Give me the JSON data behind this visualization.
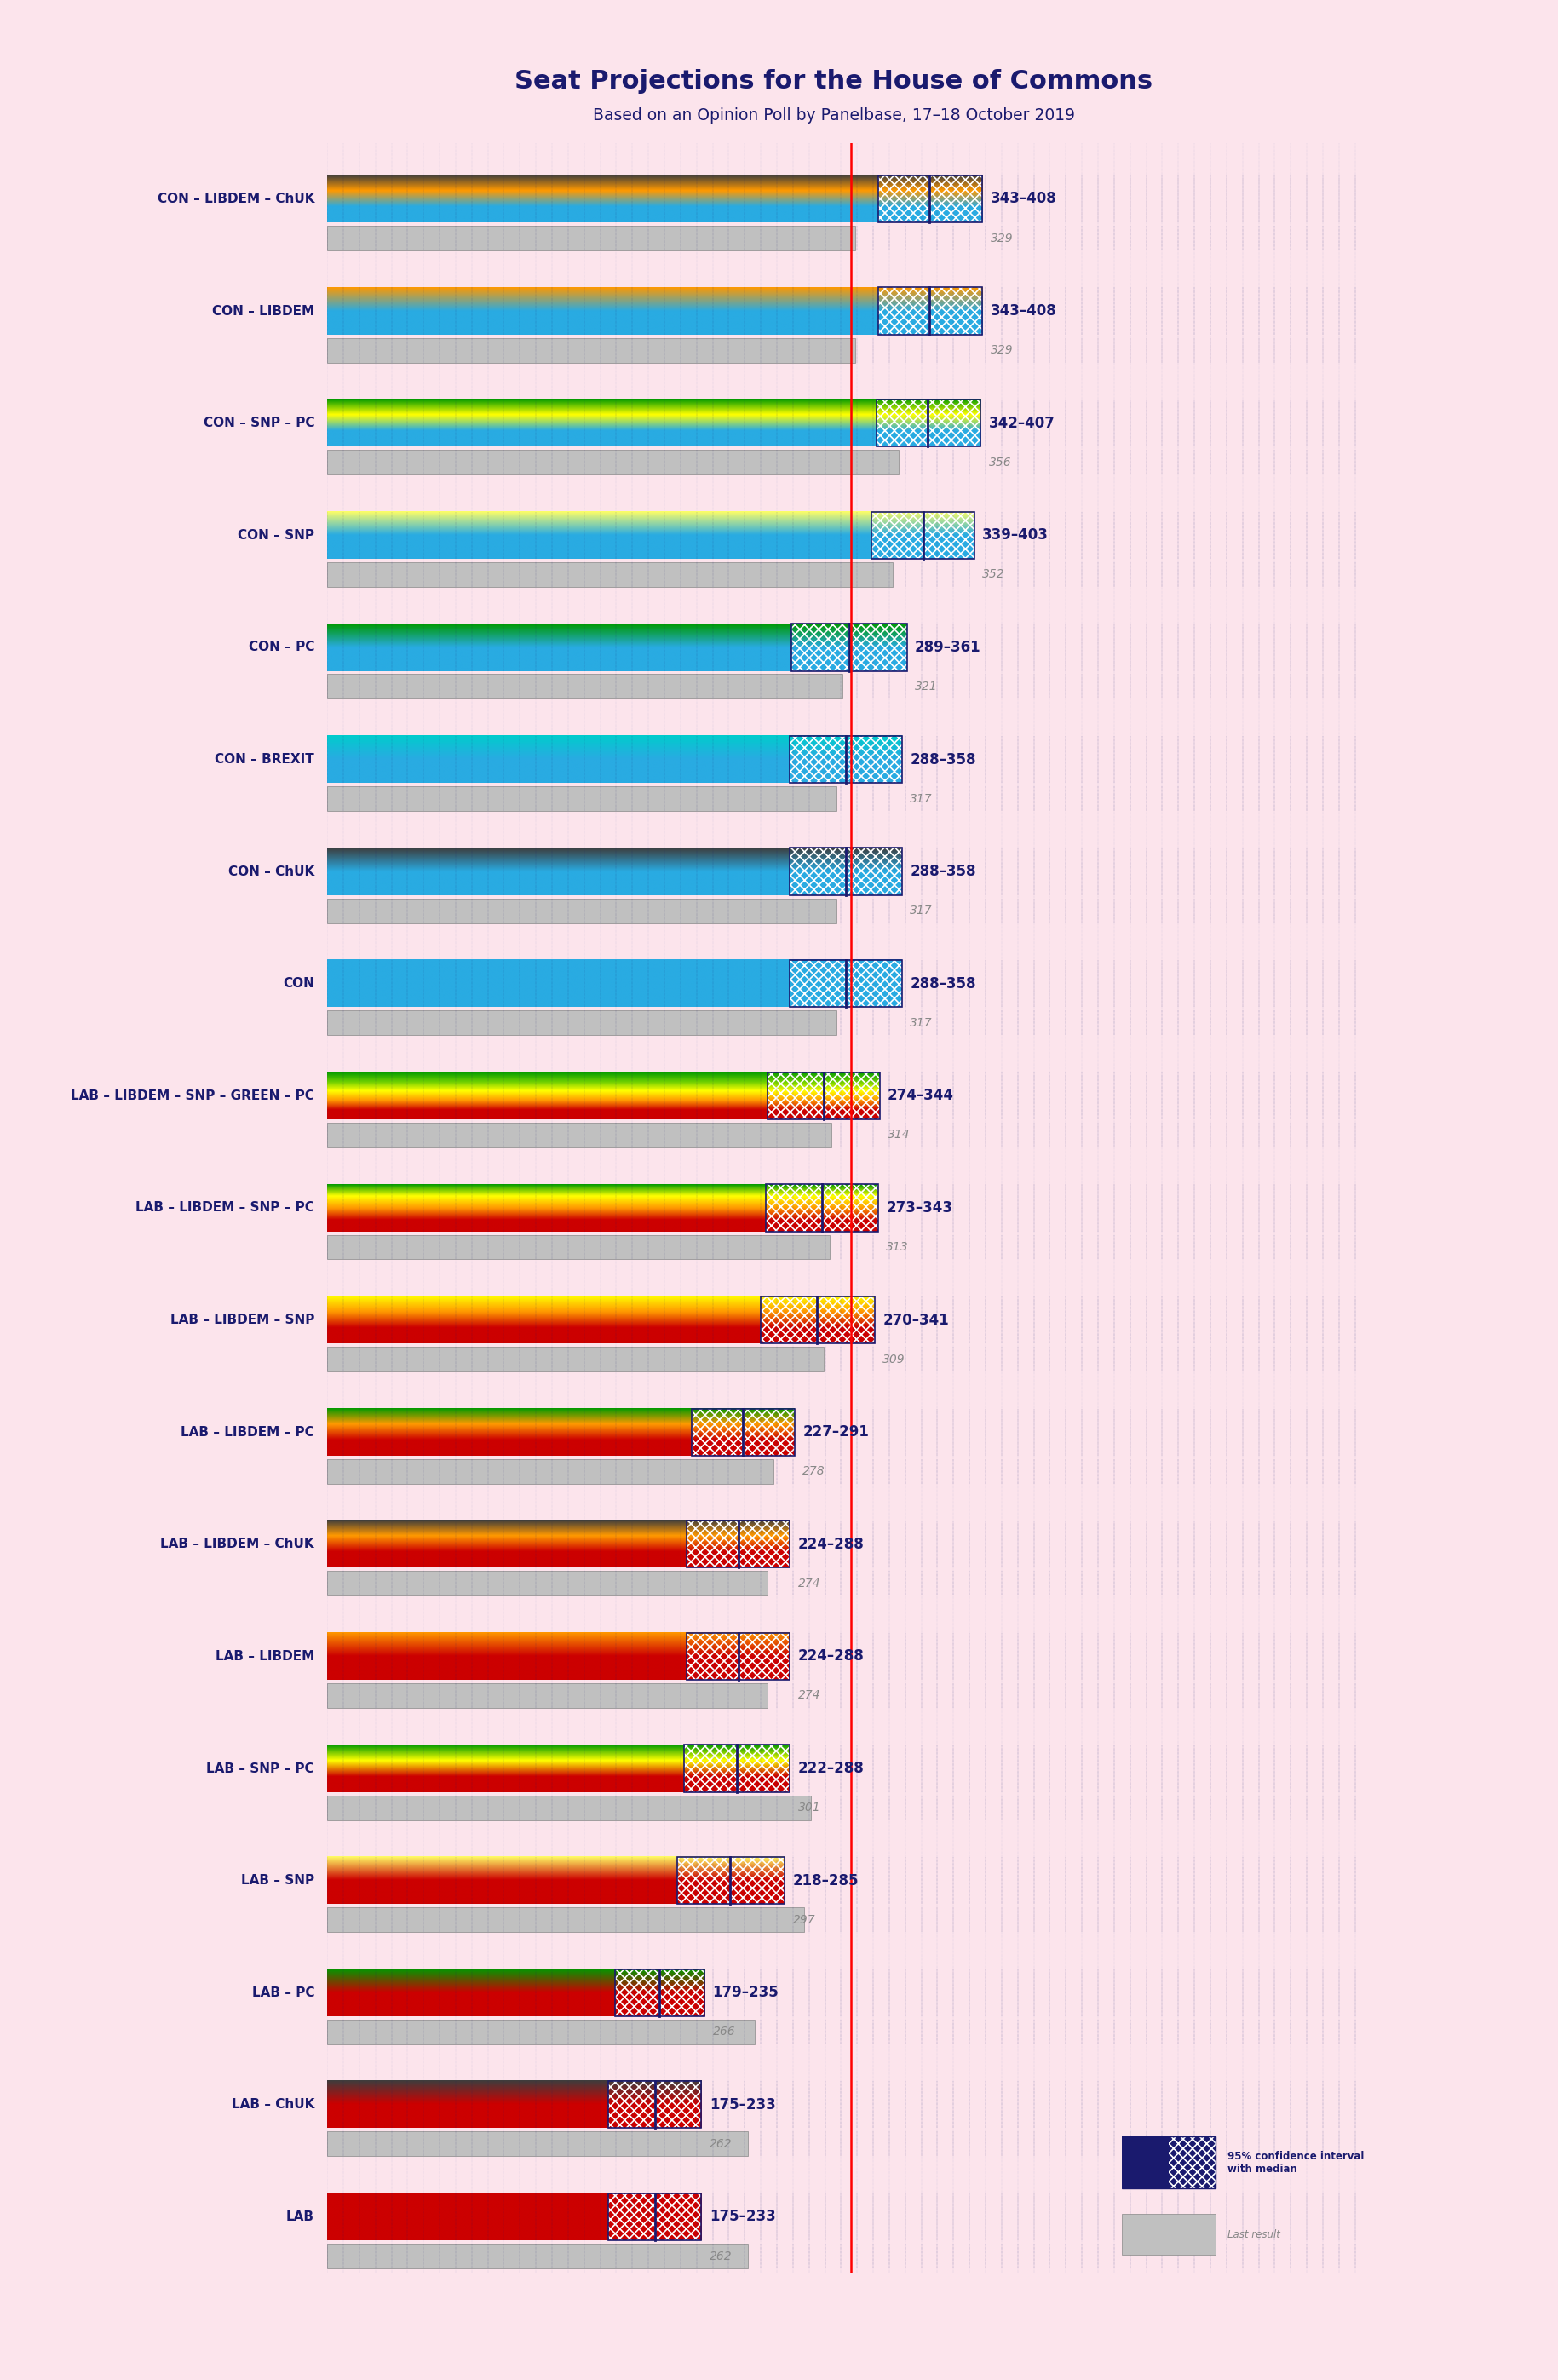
{
  "title": "Seat Projections for the House of Commons",
  "subtitle": "Based on an Opinion Poll by Panelbase, 17–18 October 2019",
  "background_color": "#fce4ec",
  "title_color": "#1a1a6e",
  "total_seats": 650,
  "majority": 326,
  "coalitions": [
    {
      "label": "CON – LIBDEM – ChUK",
      "range": "343–408",
      "median": 375,
      "ci_low": 343,
      "ci_high": 408,
      "last_result": 329,
      "bar_colors": [
        "#29ABE2",
        "#FF9900",
        "#3d3d3d"
      ]
    },
    {
      "label": "CON – LIBDEM",
      "range": "343–408",
      "median": 375,
      "ci_low": 343,
      "ci_high": 408,
      "last_result": 329,
      "bar_colors": [
        "#29ABE2",
        "#FF9900"
      ]
    },
    {
      "label": "CON – SNP – PC",
      "range": "342–407",
      "median": 374,
      "ci_low": 342,
      "ci_high": 407,
      "last_result": 356,
      "bar_colors": [
        "#29ABE2",
        "#FFFF00",
        "#009900"
      ]
    },
    {
      "label": "CON – SNP",
      "range": "339–403",
      "median": 371,
      "ci_low": 339,
      "ci_high": 403,
      "last_result": 352,
      "bar_colors": [
        "#29ABE2",
        "#FFFF66"
      ]
    },
    {
      "label": "CON – PC",
      "range": "289–361",
      "median": 325,
      "ci_low": 289,
      "ci_high": 361,
      "last_result": 321,
      "bar_colors": [
        "#29ABE2",
        "#009900"
      ]
    },
    {
      "label": "CON – BREXIT",
      "range": "288–358",
      "median": 323,
      "ci_low": 288,
      "ci_high": 358,
      "last_result": 317,
      "bar_colors": [
        "#29ABE2",
        "#00CCCC"
      ]
    },
    {
      "label": "CON – ChUK",
      "range": "288–358",
      "median": 323,
      "ci_low": 288,
      "ci_high": 358,
      "last_result": 317,
      "bar_colors": [
        "#29ABE2",
        "#3d3d3d"
      ]
    },
    {
      "label": "CON",
      "range": "288–358",
      "median": 323,
      "ci_low": 288,
      "ci_high": 358,
      "last_result": 317,
      "bar_colors": [
        "#29ABE2"
      ]
    },
    {
      "label": "LAB – LIBDEM – SNP – GREEN – PC",
      "range": "274–344",
      "median": 309,
      "ci_low": 274,
      "ci_high": 344,
      "last_result": 314,
      "bar_colors": [
        "#CC0000",
        "#FF9900",
        "#FFFF00",
        "#66CC00",
        "#009900"
      ]
    },
    {
      "label": "LAB – LIBDEM – SNP – PC",
      "range": "273–343",
      "median": 308,
      "ci_low": 273,
      "ci_high": 343,
      "last_result": 313,
      "bar_colors": [
        "#CC0000",
        "#FF9900",
        "#FFFF00",
        "#009900"
      ]
    },
    {
      "label": "LAB – LIBDEM – SNP",
      "range": "270–341",
      "median": 305,
      "ci_low": 270,
      "ci_high": 341,
      "last_result": 309,
      "bar_colors": [
        "#CC0000",
        "#FF9900",
        "#FFFF00"
      ]
    },
    {
      "label": "LAB – LIBDEM – PC",
      "range": "227–291",
      "median": 259,
      "ci_low": 227,
      "ci_high": 291,
      "last_result": 278,
      "bar_colors": [
        "#CC0000",
        "#FF9900",
        "#009900"
      ]
    },
    {
      "label": "LAB – LIBDEM – ChUK",
      "range": "224–288",
      "median": 256,
      "ci_low": 224,
      "ci_high": 288,
      "last_result": 274,
      "bar_colors": [
        "#CC0000",
        "#FF9900",
        "#3d3d3d"
      ]
    },
    {
      "label": "LAB – LIBDEM",
      "range": "224–288",
      "median": 256,
      "ci_low": 224,
      "ci_high": 288,
      "last_result": 274,
      "bar_colors": [
        "#CC0000",
        "#FF9900"
      ]
    },
    {
      "label": "LAB – SNP – PC",
      "range": "222–288",
      "median": 255,
      "ci_low": 222,
      "ci_high": 288,
      "last_result": 301,
      "bar_colors": [
        "#CC0000",
        "#FFFF00",
        "#009900"
      ]
    },
    {
      "label": "LAB – SNP",
      "range": "218–285",
      "median": 251,
      "ci_low": 218,
      "ci_high": 285,
      "last_result": 297,
      "bar_colors": [
        "#CC0000",
        "#FFFF66"
      ]
    },
    {
      "label": "LAB – PC",
      "range": "179–235",
      "median": 207,
      "ci_low": 179,
      "ci_high": 235,
      "last_result": 266,
      "bar_colors": [
        "#CC0000",
        "#009900"
      ]
    },
    {
      "label": "LAB – ChUK",
      "range": "175–233",
      "median": 204,
      "ci_low": 175,
      "ci_high": 233,
      "last_result": 262,
      "bar_colors": [
        "#CC0000",
        "#3d3d3d"
      ]
    },
    {
      "label": "LAB",
      "range": "175–233",
      "median": 204,
      "ci_low": 175,
      "ci_high": 233,
      "last_result": 262,
      "bar_colors": [
        "#CC0000"
      ]
    }
  ]
}
